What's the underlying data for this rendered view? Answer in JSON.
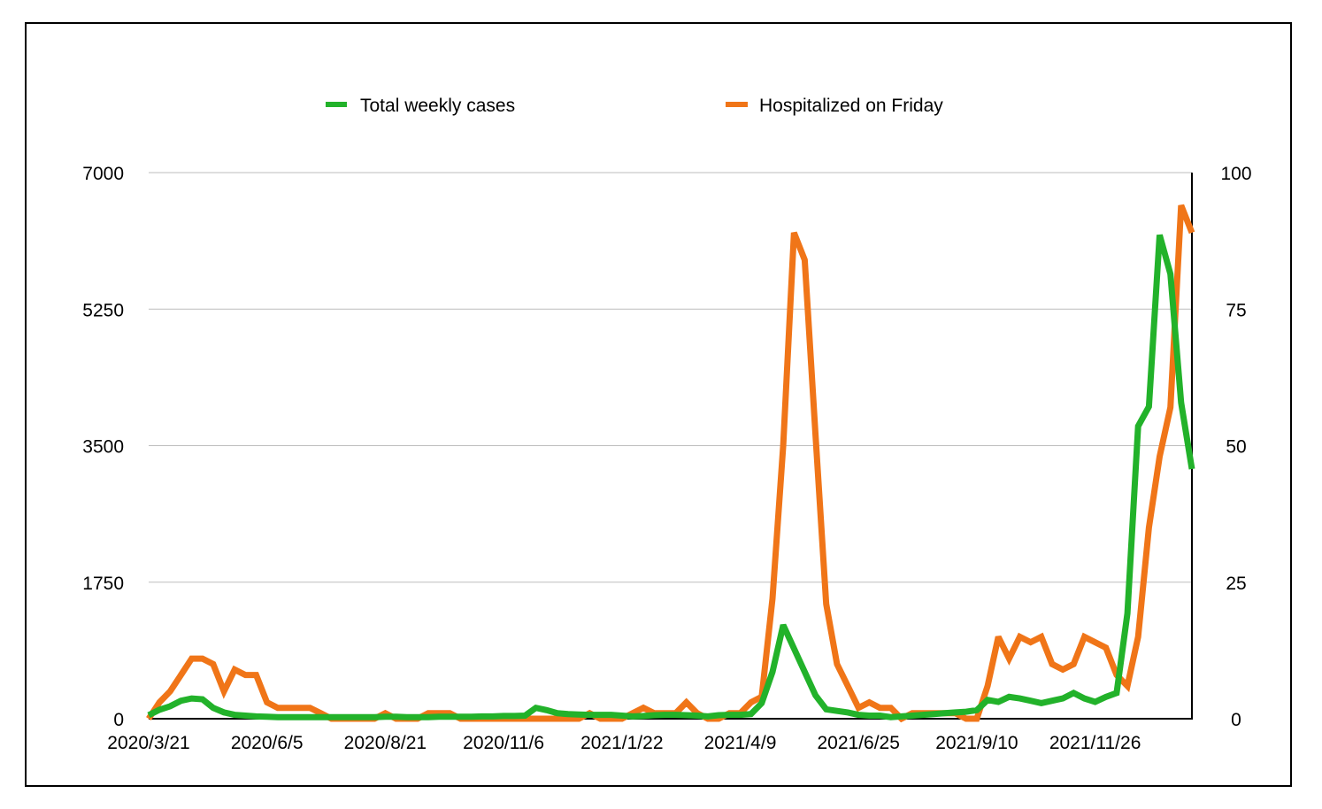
{
  "chart_data": {
    "type": "line",
    "title": "",
    "legend_placement": "top-center",
    "x_tick_labels": [
      {
        "index": 0,
        "label": "2020/3/21"
      },
      {
        "index": 11,
        "label": "2020/6/5"
      },
      {
        "index": 22,
        "label": "2020/8/21"
      },
      {
        "index": 33,
        "label": "2020/11/6"
      },
      {
        "index": 44,
        "label": "2021/1/22"
      },
      {
        "index": 55,
        "label": "2021/4/9"
      },
      {
        "index": 66,
        "label": "2021/6/25"
      },
      {
        "index": 77,
        "label": "2021/9/10"
      },
      {
        "index": 88,
        "label": "2021/11/26"
      }
    ],
    "n_points": 98,
    "y_left": {
      "ylim": [
        0,
        7000
      ],
      "ticks": [
        "0",
        "1750",
        "3500",
        "5250",
        "7000"
      ]
    },
    "y_right": {
      "ylim": [
        0,
        100
      ],
      "ticks": [
        "0",
        "25",
        "50",
        "75",
        "100"
      ]
    },
    "grid": true,
    "series": [
      {
        "name": "Total weekly cases",
        "axis": "left",
        "color": "#22b22a",
        "values": [
          45,
          115,
          160,
          230,
          260,
          250,
          140,
          80,
          50,
          40,
          30,
          25,
          20,
          20,
          20,
          20,
          20,
          20,
          20,
          20,
          20,
          20,
          25,
          25,
          20,
          20,
          20,
          25,
          25,
          25,
          25,
          30,
          30,
          35,
          35,
          40,
          140,
          110,
          70,
          60,
          55,
          50,
          50,
          50,
          40,
          30,
          35,
          45,
          50,
          50,
          45,
          40,
          30,
          45,
          50,
          50,
          60,
          200,
          600,
          1200,
          900,
          600,
          300,
          120,
          100,
          80,
          50,
          40,
          40,
          20,
          30,
          40,
          50,
          60,
          70,
          80,
          90,
          110,
          240,
          215,
          280,
          260,
          230,
          200,
          230,
          260,
          330,
          260,
          215,
          280,
          330,
          1350,
          3750,
          4000,
          6200,
          5700,
          4050,
          3200
        ]
      },
      {
        "name": "Hospitalized on Friday",
        "axis": "right",
        "color": "#f07518",
        "values": [
          0,
          3,
          5,
          8,
          11,
          11,
          10,
          5,
          9,
          8,
          8,
          3,
          2,
          2,
          2,
          2,
          1,
          0,
          0,
          0,
          0,
          0,
          1,
          0,
          0,
          0,
          1,
          1,
          1,
          0,
          0,
          0,
          0,
          0,
          0,
          0,
          0,
          0,
          0,
          0,
          0,
          1,
          0,
          0,
          0,
          1,
          2,
          1,
          1,
          1,
          3,
          1,
          0,
          0,
          1,
          1,
          3,
          4,
          22,
          50,
          89,
          84,
          52,
          21,
          10,
          6,
          2,
          3,
          2,
          2,
          0,
          1,
          1,
          1,
          1,
          1,
          0,
          0,
          6,
          15,
          11,
          15,
          14,
          15,
          10,
          9,
          10,
          15,
          14,
          13,
          8,
          6,
          15,
          35,
          48,
          57,
          94,
          89
        ]
      }
    ]
  }
}
